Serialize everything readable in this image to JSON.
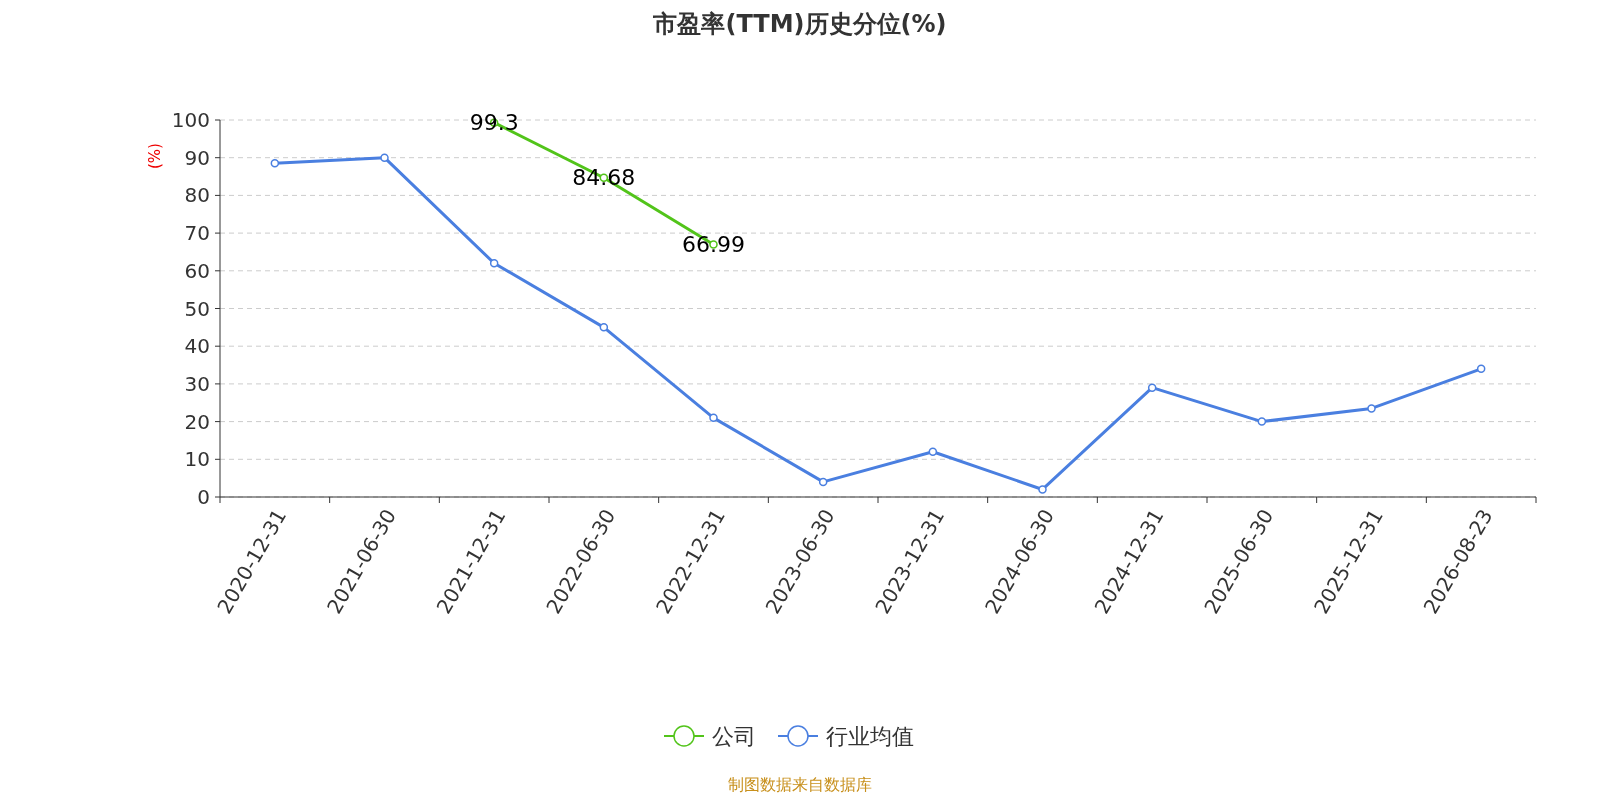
{
  "chart_data": {
    "type": "line",
    "title": "市盈率(TTM)历史分位(%)",
    "ylabel": "(%)",
    "categories": [
      "2020-12-31",
      "2021-06-30",
      "2021-12-31",
      "2022-06-30",
      "2022-12-31",
      "2023-06-30",
      "2023-12-31",
      "2024-06-30",
      "2024-12-31",
      "2025-06-30",
      "2025-12-31",
      "2026-08-23"
    ],
    "series": [
      {
        "name": "公司",
        "color": "#52c41a",
        "values": [
          null,
          null,
          99.3,
          84.68,
          66.99,
          null,
          null,
          null,
          null,
          null,
          null,
          null
        ],
        "value_labels": [
          null,
          null,
          "99.3",
          "84.68",
          "66.99",
          null,
          null,
          null,
          null,
          null,
          null,
          null
        ]
      },
      {
        "name": "行业均值",
        "color": "#4a7fe0",
        "values": [
          88.5,
          90,
          62,
          45,
          21,
          4,
          12,
          2,
          29,
          20,
          23.5,
          34
        ]
      }
    ],
    "ylim": [
      0,
      100
    ],
    "yticks": [
      0,
      10,
      20,
      30,
      40,
      50,
      60,
      70,
      80,
      90,
      100
    ],
    "grid": "y",
    "legend": "bottom",
    "marker": "circle",
    "annotations": [
      "制图数据来自数据库"
    ]
  }
}
